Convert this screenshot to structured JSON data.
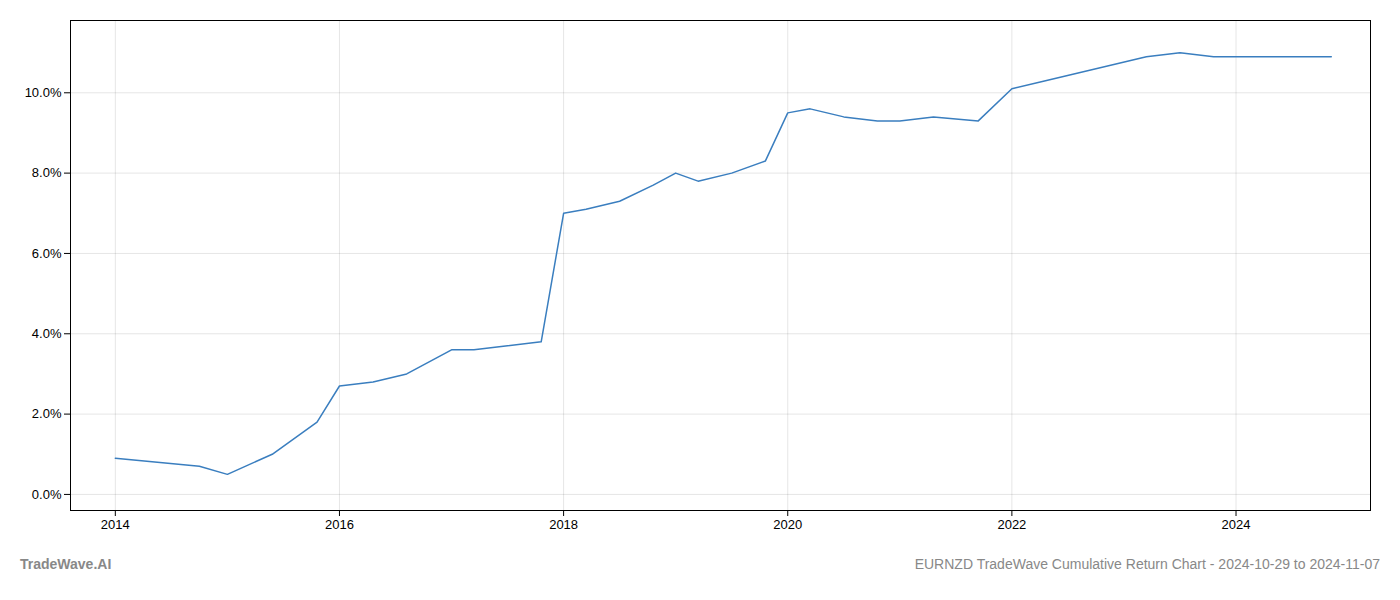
{
  "chart_data": {
    "type": "line",
    "x": [
      2014.0,
      2014.75,
      2015.0,
      2015.4,
      2015.8,
      2016.0,
      2016.3,
      2016.6,
      2017.0,
      2017.2,
      2017.5,
      2017.8,
      2018.0,
      2018.2,
      2018.5,
      2018.8,
      2019.0,
      2019.2,
      2019.5,
      2019.8,
      2020.0,
      2020.2,
      2020.5,
      2020.8,
      2021.0,
      2021.3,
      2021.7,
      2022.0,
      2022.3,
      2022.6,
      2022.9,
      2023.2,
      2023.5,
      2023.8,
      2024.0,
      2024.5,
      2024.85
    ],
    "values": [
      0.009,
      0.007,
      0.005,
      0.01,
      0.018,
      0.027,
      0.028,
      0.03,
      0.036,
      0.036,
      0.037,
      0.038,
      0.07,
      0.071,
      0.073,
      0.077,
      0.08,
      0.078,
      0.08,
      0.083,
      0.095,
      0.096,
      0.094,
      0.093,
      0.093,
      0.094,
      0.093,
      0.101,
      0.103,
      0.105,
      0.107,
      0.109,
      0.11,
      0.109,
      0.109,
      0.109,
      0.109
    ],
    "color": "#3a7ebf",
    "xlim": [
      2013.6,
      2025.2
    ],
    "ylim": [
      -0.004,
      0.118
    ],
    "xticks": [
      2014,
      2016,
      2018,
      2020,
      2022,
      2024
    ],
    "yticks": [
      {
        "value": 0.0,
        "label": "0.0%"
      },
      {
        "value": 0.02,
        "label": "2.0%"
      },
      {
        "value": 0.04,
        "label": "4.0%"
      },
      {
        "value": 0.06,
        "label": "6.0%"
      },
      {
        "value": 0.08,
        "label": "8.0%"
      },
      {
        "value": 0.1,
        "label": "10.0%"
      }
    ],
    "grid": true,
    "annotations": [
      "TradeWave.AI",
      "EURNZD TradeWave Cumulative Return Chart - 2024-10-29 to 2024-11-07"
    ]
  }
}
